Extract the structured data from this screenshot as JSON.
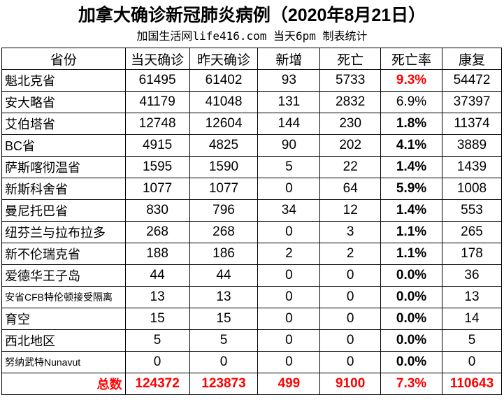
{
  "title": "加拿大确诊新冠肺炎病例（2020年8月21日）",
  "subtitle": "加国生活网life416.com 当天6pm 制表统计",
  "colors": {
    "highlight": "#ff0000"
  },
  "headers": [
    "省份",
    "当天确诊",
    "昨天确诊",
    "新增",
    "死亡",
    "死亡率",
    "康复"
  ],
  "rows": [
    [
      "魁北克省",
      "61495",
      "61402",
      "93",
      "5733",
      "9.3%",
      "54472",
      "red"
    ],
    [
      "安大略省",
      "41179",
      "41048",
      "131",
      "2832",
      "6.9%",
      "37397",
      ""
    ],
    [
      "艾伯塔省",
      "12748",
      "12604",
      "144",
      "230",
      "1.8%",
      "11374",
      "bold"
    ],
    [
      "BC省",
      "4915",
      "4825",
      "90",
      "202",
      "4.1%",
      "3889",
      "bold"
    ],
    [
      "萨斯喀彻温省",
      "1595",
      "1590",
      "5",
      "22",
      "1.4%",
      "1439",
      "bold"
    ],
    [
      "新斯科舍省",
      "1077",
      "1077",
      "0",
      "64",
      "5.9%",
      "1008",
      "bold"
    ],
    [
      "曼尼托巴省",
      "830",
      "796",
      "34",
      "12",
      "1.4%",
      "553",
      "bold"
    ],
    [
      "纽芬兰与拉布拉多",
      "268",
      "268",
      "0",
      "3",
      "1.1%",
      "265",
      "bold"
    ],
    [
      "新不伦瑞克省",
      "188",
      "186",
      "2",
      "2",
      "1.1%",
      "178",
      "bold"
    ],
    [
      "爱德华王子岛",
      "44",
      "44",
      "0",
      "0",
      "0.0%",
      "36",
      "bold"
    ],
    [
      "安省CFB特伦顿接受隔离",
      "13",
      "13",
      "0",
      "0",
      "0.0%",
      "13",
      "bold"
    ],
    [
      "育空",
      "15",
      "15",
      "0",
      "0",
      "0.0%",
      "14",
      "bold"
    ],
    [
      "西北地区",
      "5",
      "5",
      "0",
      "0",
      "0.0%",
      "5",
      "bold"
    ],
    [
      "努纳武特Nunavut",
      "0",
      "0",
      "0",
      "0",
      "0.0%",
      "0",
      "bold"
    ]
  ],
  "total": [
    "总数",
    "124372",
    "123873",
    "499",
    "9100",
    "7.3%",
    "110643"
  ]
}
